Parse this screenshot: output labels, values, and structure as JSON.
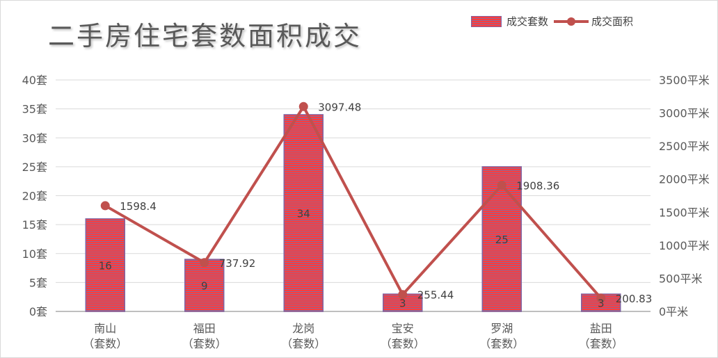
{
  "title": "二手房住宅套数面积成交",
  "legend": {
    "bar_label": "成交套数",
    "line_label": "成交面积"
  },
  "colors": {
    "bar_fill": "#ff3b3b",
    "bar_stripe": "#8a6a9a",
    "bar_border": "#8064a2",
    "line": "#c0504d",
    "grid": "#d9d9d9",
    "axis_text": "#595959"
  },
  "chart_data": {
    "type": "bar",
    "title": "二手房住宅套数面积成交",
    "categories": [
      [
        "南山",
        "（套数）"
      ],
      [
        "福田",
        "（套数）"
      ],
      [
        "龙岗",
        "（套数）"
      ],
      [
        "宝安",
        "（套数）"
      ],
      [
        "罗湖",
        "（套数）"
      ],
      [
        "盐田",
        "（套数）"
      ]
    ],
    "series": [
      {
        "name": "成交套数",
        "type": "bar",
        "axis": "left",
        "values": [
          16,
          9,
          34,
          3,
          25,
          3
        ],
        "value_labels": [
          "16",
          "9",
          "34",
          "3",
          "25",
          "3"
        ]
      },
      {
        "name": "成交面积",
        "type": "line",
        "axis": "right",
        "values": [
          1598.4,
          737.92,
          3097.48,
          255.44,
          1908.36,
          200.83
        ],
        "value_labels": [
          "1598.4",
          "737.92",
          "3097.48",
          "255.44",
          "1908.36",
          "200.83"
        ]
      }
    ],
    "y_left": {
      "min": 0,
      "max": 40,
      "ticks": [
        0,
        5,
        10,
        15,
        20,
        25,
        30,
        35,
        40
      ],
      "tick_labels": [
        "0套",
        "5套",
        "10套",
        "15套",
        "20套",
        "25套",
        "30套",
        "35套",
        "40套"
      ]
    },
    "y_right": {
      "min": 0,
      "max": 3500,
      "ticks": [
        0,
        500,
        1000,
        1500,
        2000,
        2500,
        3000,
        3500
      ],
      "tick_labels": [
        "0平米",
        "500平米",
        "1000平米",
        "1500平米",
        "2000平米",
        "2500平米",
        "3000平米",
        "3500平米"
      ]
    },
    "grid": true,
    "legend_position": "top-right"
  }
}
